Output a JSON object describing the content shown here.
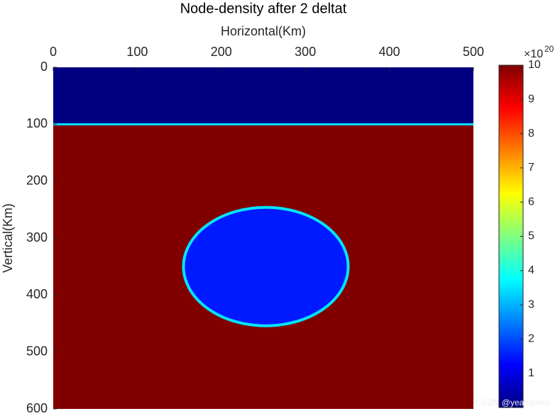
{
  "chart_data": {
    "type": "heatmap",
    "title": "Node-density after 2 deltat",
    "x_label": "Horizontal(Km)",
    "y_label": "Vertical(Km)",
    "x_axis_position": "top",
    "y_reversed": true,
    "xlim": [
      0,
      500
    ],
    "xticks": [
      0,
      100,
      200,
      300,
      400,
      500
    ],
    "ylim": [
      0,
      600
    ],
    "yticks": [
      0,
      100,
      200,
      300,
      400,
      500,
      600
    ],
    "colormap": "jet",
    "clim": [
      0,
      10
    ],
    "cticks": [
      1,
      2,
      3,
      4,
      5,
      6,
      7,
      8,
      9,
      10
    ],
    "colorbar_multiplier": {
      "base": "×10",
      "exponent": "20"
    },
    "layers": [
      {
        "ymin": 0,
        "ymax": 100,
        "value": 0
      },
      {
        "ymin": 100,
        "ymax": 600,
        "value": 10
      }
    ],
    "bubble": {
      "cx": 253,
      "cy": 350,
      "rx": 98,
      "ry": 104,
      "value": 1.5
    },
    "watermark": "CSDN @yeahamen"
  }
}
